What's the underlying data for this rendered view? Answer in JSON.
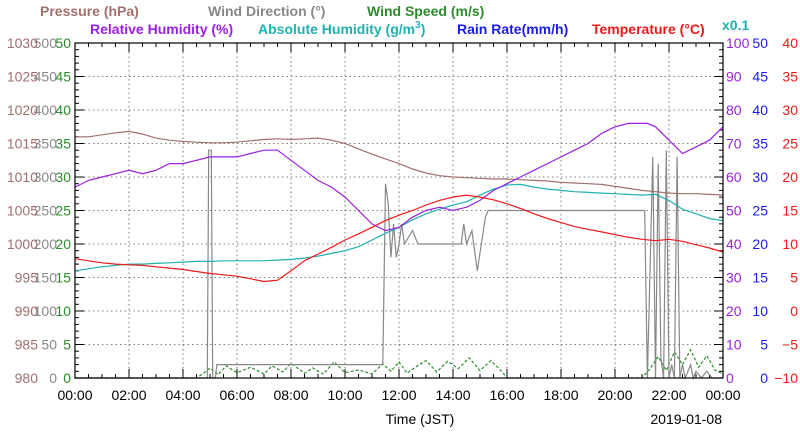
{
  "chart_data": {
    "type": "line",
    "date_label": "2019-01-08",
    "xlabel": "Time (JST)",
    "x_ticks": [
      "00:00",
      "02:00",
      "04:00",
      "06:00",
      "08:00",
      "10:00",
      "12:00",
      "14:00",
      "16:00",
      "18:00",
      "20:00",
      "22:00",
      "00:00"
    ],
    "legend": {
      "pressure": "Pressure (hPa)",
      "wind_direction": "Wind Direction (°)",
      "wind_speed": "Wind Speed (m/s)",
      "relative_humidity": "Relative Humidity (%)",
      "absolute_humidity_prefix": "Absolute Humidity (g/m",
      "absolute_humidity_sup": "3",
      "absolute_humidity_suffix": ")",
      "rain_rate": "Rain Rate(mm/h)",
      "temperature": "Temperature (°C)",
      "scale_note": "x0.1"
    },
    "axes": {
      "pressure": {
        "range": [
          980,
          1030
        ],
        "ticks": [
          "1030",
          "1025",
          "1020",
          "1015",
          "1010",
          "1005",
          "1000",
          "995",
          "990",
          "985",
          "980"
        ],
        "color": "#a0706e"
      },
      "wind_direction": {
        "range": [
          0,
          500
        ],
        "ticks": [
          "500",
          "450",
          "400",
          "350",
          "300",
          "250",
          "200",
          "150",
          "100",
          "50",
          "0"
        ],
        "color": "#888888"
      },
      "wind_speed": {
        "range": [
          0,
          50
        ],
        "ticks": [
          "50",
          "45",
          "40",
          "35",
          "30",
          "25",
          "20",
          "15",
          "10",
          "5",
          "0"
        ],
        "color": "#2e8b2e"
      },
      "relative_humidity": {
        "range": [
          0,
          100
        ],
        "ticks": [
          "100",
          "90",
          "80",
          "70",
          "60",
          "50",
          "40",
          "30",
          "20",
          "10",
          "0"
        ],
        "color": "#9a1fe0"
      },
      "rain_rate": {
        "range": [
          0,
          50
        ],
        "ticks": [
          "50",
          "45",
          "40",
          "35",
          "30",
          "25",
          "20",
          "15",
          "10",
          "5",
          "0"
        ],
        "color": "#1a1aee"
      },
      "temperature": {
        "range": [
          -10,
          40
        ],
        "ticks": [
          "40",
          "35",
          "30",
          "25",
          "20",
          "15",
          "10",
          "5",
          "0",
          "−5",
          "−10"
        ],
        "color": "#ee1a1a"
      }
    },
    "x_range_hours": [
      0,
      24
    ],
    "grid": true,
    "series": [
      {
        "name": "Pressure (hPa)",
        "axis": "pressure",
        "color": "#a0706e",
        "x": [
          0,
          0.5,
          1,
          1.5,
          2,
          2.5,
          3,
          3.5,
          4,
          4.5,
          5,
          5.5,
          6,
          6.5,
          7,
          7.5,
          8,
          8.5,
          9,
          9.5,
          10,
          10.5,
          11,
          11.5,
          12,
          12.5,
          13,
          13.5,
          14,
          14.5,
          15,
          15.5,
          16,
          16.5,
          17,
          17.5,
          18,
          18.5,
          19,
          19.5,
          20,
          20.5,
          21,
          21.5,
          22,
          22.5,
          23,
          23.5,
          24
        ],
        "y": [
          1016,
          1016,
          1016.3,
          1016.6,
          1016.8,
          1016.4,
          1015.8,
          1015.5,
          1015.3,
          1015.2,
          1015.1,
          1015.1,
          1015.2,
          1015.4,
          1015.6,
          1015.7,
          1015.6,
          1015.7,
          1015.8,
          1015.5,
          1015,
          1014.2,
          1013.4,
          1012.7,
          1012,
          1011.2,
          1010.6,
          1010.2,
          1010,
          1009.9,
          1009.8,
          1009.7,
          1009.7,
          1009.6,
          1009.5,
          1009.4,
          1009.2,
          1009.1,
          1009,
          1008.9,
          1008.6,
          1008.3,
          1008,
          1007.8,
          1007.6,
          1007.5,
          1007.5,
          1007.4,
          1007.3
        ]
      },
      {
        "name": "Relative Humidity (%)",
        "axis": "relative_humidity",
        "color": "#9a1fe0",
        "x": [
          0,
          0.5,
          1,
          1.5,
          2,
          2.5,
          3,
          3.5,
          4,
          4.5,
          5,
          5.5,
          6,
          6.5,
          7,
          7.5,
          8,
          8.5,
          9,
          9.5,
          10,
          10.5,
          11,
          11.5,
          12,
          12.5,
          13,
          13.5,
          14,
          14.5,
          15,
          15.5,
          16,
          16.5,
          17,
          17.5,
          18,
          18.5,
          19,
          19.5,
          20,
          20.5,
          21,
          21.2,
          21.5,
          22,
          22.5,
          23,
          23.5,
          24
        ],
        "y": [
          57,
          59,
          60,
          61,
          62,
          61,
          62,
          64,
          64,
          65,
          66,
          66,
          66,
          67,
          68,
          68,
          65,
          62,
          59,
          57,
          54,
          50,
          46,
          44,
          45,
          48,
          50,
          51,
          50,
          51,
          53,
          56,
          58,
          60,
          62,
          64,
          66,
          68,
          70,
          73,
          75,
          76,
          76,
          76,
          75,
          71,
          67,
          69,
          71,
          75
        ]
      },
      {
        "name": "Absolute Humidity",
        "axis": "rain_rate",
        "color": "#20b0b0",
        "x": [
          0,
          0.5,
          1,
          1.5,
          2,
          2.5,
          3,
          3.5,
          4,
          4.5,
          5,
          5.5,
          6,
          6.5,
          7,
          7.5,
          8,
          8.5,
          9,
          9.5,
          10,
          10.5,
          11,
          11.5,
          12,
          12.5,
          13,
          13.5,
          14,
          14.5,
          15,
          15.5,
          16,
          16.5,
          17,
          17.5,
          18,
          18.5,
          19,
          19.5,
          20,
          20.5,
          21,
          21.5,
          22,
          22.5,
          23,
          23.5,
          24
        ],
        "y": [
          16,
          16.3,
          16.6,
          16.8,
          17,
          17,
          17.1,
          17.2,
          17.3,
          17.4,
          17.4,
          17.5,
          17.5,
          17.5,
          17.5,
          17.6,
          17.7,
          17.9,
          18.2,
          18.6,
          19,
          19.6,
          20.6,
          21.6,
          22.5,
          23.6,
          24.5,
          25.2,
          25.8,
          26.3,
          27.3,
          28.2,
          28.8,
          28.9,
          28.5,
          28.2,
          28,
          27.8,
          27.7,
          27.6,
          27.5,
          27.4,
          27.3,
          27.4,
          26.5,
          25.2,
          24.5,
          23.8,
          23.5
        ]
      },
      {
        "name": "Temperature (°C)",
        "axis": "temperature",
        "color": "#ee1a1a",
        "x": [
          0,
          0.5,
          1,
          1.5,
          2,
          2.5,
          3,
          3.5,
          4,
          4.5,
          5,
          5.5,
          6,
          6.5,
          7,
          7.5,
          8,
          8.5,
          9,
          9.5,
          10,
          10.5,
          11,
          11.5,
          12,
          12.5,
          13,
          13.5,
          14,
          14.5,
          15,
          15.5,
          16,
          16.5,
          17,
          17.5,
          18,
          18.5,
          19,
          19.5,
          20,
          20.5,
          21,
          21.5,
          22,
          22.5,
          23,
          23.5,
          24
        ],
        "y": [
          7.8,
          7.5,
          7.2,
          7,
          6.9,
          6.8,
          6.6,
          6.4,
          6.2,
          5.9,
          5.6,
          5.4,
          5.2,
          4.8,
          4.4,
          4.6,
          6,
          7.5,
          8.5,
          9.5,
          10.6,
          11.5,
          12.5,
          13.5,
          14.3,
          15,
          15.8,
          16.5,
          17,
          17.3,
          17,
          16.6,
          16,
          15.3,
          14.5,
          13.8,
          13.2,
          12.6,
          12.2,
          11.8,
          11.4,
          11,
          10.7,
          10.5,
          10.7,
          10.4,
          9.9,
          9.4,
          8.8
        ]
      },
      {
        "name": "Wind Direction (°)",
        "axis": "wind_direction",
        "color": "#888888",
        "x": [
          0,
          4.9,
          4.95,
          5.05,
          5.1,
          5.2,
          5.25,
          5.4,
          9.9,
          10,
          11.4,
          11.5,
          11.6,
          11.7,
          11.8,
          11.9,
          12,
          12.1,
          12.2,
          12.5,
          12.7,
          13.5,
          14.3,
          14.4,
          14.5,
          14.7,
          14.9,
          15.2,
          15.3,
          15.5,
          21.1,
          21.2,
          21.4,
          21.5,
          21.6,
          21.7,
          21.8,
          21.9,
          22,
          22.1,
          22.2,
          22.3,
          22.4,
          22.5,
          22.6,
          22.7,
          22.8,
          22.9,
          23,
          23.2,
          23.4,
          23.6,
          23.8,
          24
        ],
        "y": [
          0,
          0,
          340,
          340,
          0,
          0,
          20,
          20,
          20,
          20,
          20,
          290,
          260,
          180,
          230,
          180,
          200,
          230,
          200,
          220,
          200,
          200,
          200,
          230,
          200,
          220,
          160,
          240,
          250,
          250,
          250,
          0,
          330,
          0,
          320,
          30,
          0,
          340,
          0,
          20,
          0,
          330,
          0,
          20,
          0,
          10,
          20,
          0,
          10,
          0,
          10,
          0,
          0,
          0
        ]
      },
      {
        "name": "Wind Speed (m/s)",
        "axis": "wind_speed",
        "color": "#2e8b2e",
        "x": [
          0,
          4.5,
          4.8,
          5,
          5.3,
          5.6,
          6,
          6.5,
          7,
          7.3,
          7.7,
          8,
          8.5,
          8.8,
          9.2,
          9.6,
          10,
          10.5,
          11,
          11.4,
          11.7,
          12,
          12.3,
          12.6,
          13,
          13.4,
          13.8,
          14.2,
          14.6,
          15,
          15.4,
          15.8,
          16,
          16.5,
          17,
          18,
          19,
          20,
          21,
          21.3,
          21.6,
          21.9,
          22.2,
          22.5,
          22.8,
          23.1,
          23.4,
          23.7,
          24
        ],
        "y": [
          0,
          0,
          0.8,
          1.5,
          0.5,
          1.8,
          0.8,
          1.6,
          0.6,
          1.8,
          0.9,
          2.2,
          0.7,
          1.5,
          0.6,
          2.4,
          0.8,
          1.2,
          0.6,
          2.1,
          1.0,
          2.4,
          0.7,
          1.6,
          2.6,
          0.9,
          2.5,
          1.4,
          3.0,
          1.1,
          2.6,
          1.0,
          0,
          0,
          0,
          0,
          0,
          0,
          0,
          1.4,
          3.2,
          1.1,
          3.9,
          2.0,
          4.2,
          1.6,
          3.3,
          1.2,
          0.6
        ]
      }
    ]
  }
}
